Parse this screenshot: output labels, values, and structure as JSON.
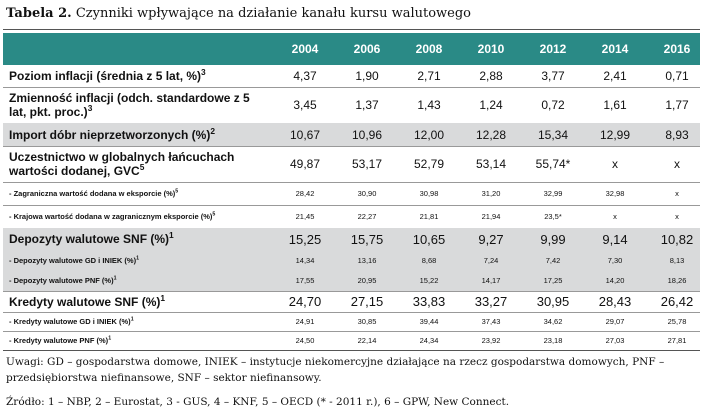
{
  "title": {
    "label": "Tabela 2.",
    "text": "Czynniki wpływające na działanie kanału kursu walutowego"
  },
  "years": [
    "2004",
    "2006",
    "2008",
    "2010",
    "2012",
    "2014",
    "2016"
  ],
  "rows": [
    {
      "name": "Poziom inflacji (średnia z 5 lat, %)",
      "sup": "3",
      "values": [
        "4,37",
        "1,90",
        "2,71",
        "2,88",
        "3,77",
        "2,41",
        "0,71"
      ]
    },
    {
      "name": "Zmienność inflacji (odch. standardowe z 5 lat, pkt. proc.)",
      "sup": "3",
      "values": [
        "3,45",
        "1,37",
        "1,43",
        "1,24",
        "0,72",
        "1,61",
        "1,77"
      ]
    },
    {
      "name": "Import dóbr nieprzetworzonych (%)",
      "sup": "2",
      "values": [
        "10,67",
        "10,96",
        "12,00",
        "12,28",
        "15,34",
        "12,99",
        "8,93"
      ]
    },
    {
      "name": "Uczestnictwo w globalnych łańcuchach wartości dodanej, GVC",
      "sup": "5",
      "values": [
        "49,87",
        "53,17",
        "52,79",
        "53,14",
        "55,74*",
        "x",
        "x"
      ]
    },
    {
      "name": "- Zagraniczna wartość dodana w eksporcie (%)",
      "sup": "5",
      "values": [
        "28,42",
        "30,90",
        "30,98",
        "31,20",
        "32,99",
        "32,98",
        "x"
      ]
    },
    {
      "name": "- Krajowa wartość dodana w zagranicznym eksporcie (%)",
      "sup": "5",
      "values": [
        "21,45",
        "22,27",
        "21,81",
        "21,94",
        "23,5*",
        "x",
        "x"
      ]
    },
    {
      "name": "Depozyty walutowe SNF (%)",
      "sup": "1",
      "values": [
        "15,25",
        "15,75",
        "10,65",
        "9,27",
        "9,99",
        "9,14",
        "10,82"
      ]
    },
    {
      "name": "- Depozyty walutowe GD i INIEK (%)",
      "sup": "1",
      "values": [
        "14,34",
        "13,16",
        "8,68",
        "7,24",
        "7,42",
        "7,30",
        "8,13"
      ]
    },
    {
      "name": "- Depozyty walutowe PNF (%)",
      "sup": "1",
      "values": [
        "17,55",
        "20,95",
        "15,22",
        "14,17",
        "17,25",
        "14,20",
        "18,26"
      ]
    },
    {
      "name": "Kredyty walutowe SNF (%)",
      "sup": "1",
      "values": [
        "24,70",
        "27,15",
        "33,83",
        "33,27",
        "30,95",
        "28,43",
        "26,42"
      ]
    },
    {
      "name": "- Kredyty walutowe GD i INIEK (%)",
      "sup": "1",
      "values": [
        "24,91",
        "30,85",
        "39,44",
        "37,43",
        "34,62",
        "29,07",
        "25,78"
      ]
    },
    {
      "name": "- Kredyty walutowe PNF (%)",
      "sup": "1",
      "values": [
        "24,50",
        "22,14",
        "24,34",
        "23,92",
        "23,18",
        "27,03",
        "27,81"
      ]
    }
  ],
  "notes": "Uwagi: GD – gospodarstwa domowe, INIEK – instytucje niekomercyjne działające na rzecz gospodarstwa domowych, PNF – przedsiębiorstwa niefinansowe, SNF – sektor niefinansowy.",
  "source": "Źródło: 1 – NBP, 2 – Eurostat, 3 - GUS, 4 – KNF, 5 – OECD (* - 2011 r.), 6 – GPW, New Connect.",
  "colors": {
    "header_bg": "#2a8a86",
    "shade_bg": "#d9dadb"
  }
}
